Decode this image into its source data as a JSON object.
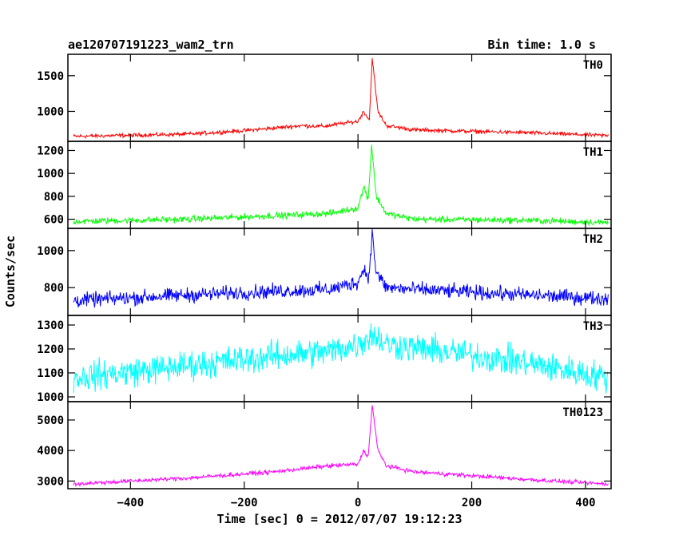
{
  "header": {
    "title": "ae120707191223_wam2_trn",
    "bin_time": "Bin time: 1.0 s"
  },
  "chart_data": {
    "type": "line",
    "title": "ae120707191223_wam2_trn",
    "xlabel": "Time [sec] 0 = 2012/07/07 19:12:23",
    "ylabel": "Counts/sec",
    "xlim": [
      -510,
      445
    ],
    "x_ticks": [
      -400,
      -200,
      0,
      200,
      400
    ],
    "x_tick_labels": [
      "−400",
      "−200",
      "0",
      "200",
      "400"
    ],
    "grid": false,
    "panels": [
      {
        "name": "TH0",
        "color": "#ff0000",
        "ylim": [
          580,
          1800
        ],
        "yticks": [
          1000,
          1500
        ],
        "profile": [
          [
            -500,
            650
          ],
          [
            -300,
            680
          ],
          [
            -200,
            730
          ],
          [
            -100,
            800
          ],
          [
            -60,
            790
          ],
          [
            -20,
            840
          ],
          [
            0,
            860
          ],
          [
            10,
            1000
          ],
          [
            20,
            880
          ],
          [
            25,
            1750
          ],
          [
            35,
            1000
          ],
          [
            50,
            800
          ],
          [
            100,
            740
          ],
          [
            300,
            700
          ],
          [
            440,
            660
          ]
        ],
        "noise": 25
      },
      {
        "name": "TH1",
        "color": "#00ff00",
        "ylim": [
          520,
          1280
        ],
        "yticks": [
          600,
          800,
          1000,
          1200
        ],
        "profile": [
          [
            -500,
            580
          ],
          [
            -300,
            600
          ],
          [
            -150,
            630
          ],
          [
            -50,
            650
          ],
          [
            0,
            700
          ],
          [
            10,
            880
          ],
          [
            18,
            780
          ],
          [
            24,
            1250
          ],
          [
            32,
            800
          ],
          [
            50,
            650
          ],
          [
            100,
            600
          ],
          [
            300,
            590
          ],
          [
            440,
            570
          ]
        ],
        "noise": 25
      },
      {
        "name": "TH2",
        "color": "#0000ff",
        "ylim": [
          650,
          1120
        ],
        "yticks": [
          800,
          1000
        ],
        "profile": [
          [
            -500,
            730
          ],
          [
            -300,
            760
          ],
          [
            -150,
            780
          ],
          [
            -50,
            790
          ],
          [
            0,
            830
          ],
          [
            10,
            900
          ],
          [
            20,
            860
          ],
          [
            25,
            1100
          ],
          [
            32,
            880
          ],
          [
            50,
            800
          ],
          [
            100,
            790
          ],
          [
            300,
            760
          ],
          [
            440,
            740
          ]
        ],
        "noise": 35
      },
      {
        "name": "TH3",
        "color": "#00ffff",
        "ylim": [
          980,
          1340
        ],
        "yticks": [
          1000,
          1100,
          1200,
          1300
        ],
        "profile": [
          [
            -500,
            1080
          ],
          [
            -300,
            1130
          ],
          [
            -150,
            1170
          ],
          [
            -50,
            1190
          ],
          [
            0,
            1220
          ],
          [
            25,
            1260
          ],
          [
            50,
            1220
          ],
          [
            150,
            1190
          ],
          [
            300,
            1140
          ],
          [
            440,
            1080
          ]
        ],
        "noise": 55
      },
      {
        "name": "TH0123",
        "color": "#ff00ff",
        "ylim": [
          2750,
          5600
        ],
        "yticks": [
          3000,
          4000,
          5000
        ],
        "profile": [
          [
            -500,
            2900
          ],
          [
            -300,
            3100
          ],
          [
            -150,
            3300
          ],
          [
            -50,
            3500
          ],
          [
            0,
            3550
          ],
          [
            10,
            4000
          ],
          [
            18,
            3800
          ],
          [
            25,
            5500
          ],
          [
            35,
            4000
          ],
          [
            50,
            3500
          ],
          [
            100,
            3300
          ],
          [
            300,
            3050
          ],
          [
            440,
            2900
          ]
        ],
        "noise": 60
      }
    ]
  }
}
